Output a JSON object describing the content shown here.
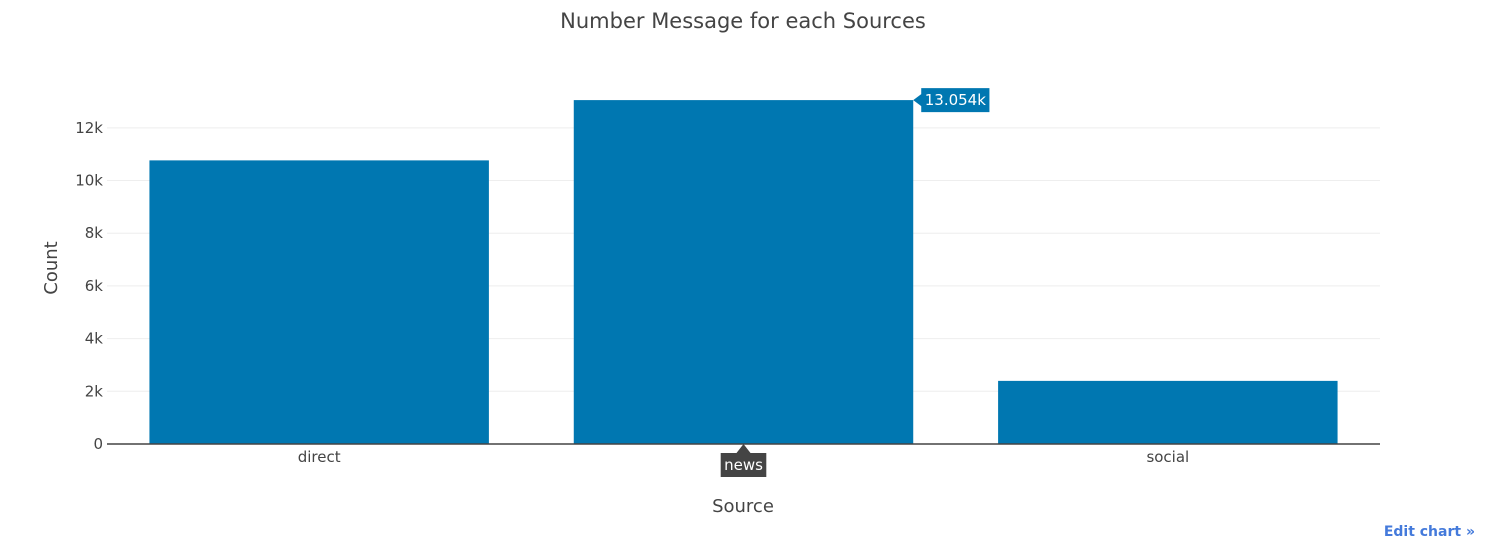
{
  "chart_data": {
    "type": "bar",
    "title": "Number Message for each Sources",
    "xlabel": "Source",
    "ylabel": "Count",
    "categories": [
      "direct",
      "news",
      "social"
    ],
    "values": [
      10766,
      13054,
      2396
    ],
    "ylim": [
      0,
      13741
    ],
    "yticks": [
      0,
      2000,
      4000,
      6000,
      8000,
      10000,
      12000
    ],
    "ytick_labels": [
      "0",
      "2k",
      "4k",
      "6k",
      "8k",
      "10k",
      "12k"
    ],
    "grid": true,
    "bar_color": "#0077b1",
    "hover": {
      "category": "news",
      "value_label": "13.054k"
    }
  },
  "footer": {
    "edit_link": "Edit chart »"
  }
}
